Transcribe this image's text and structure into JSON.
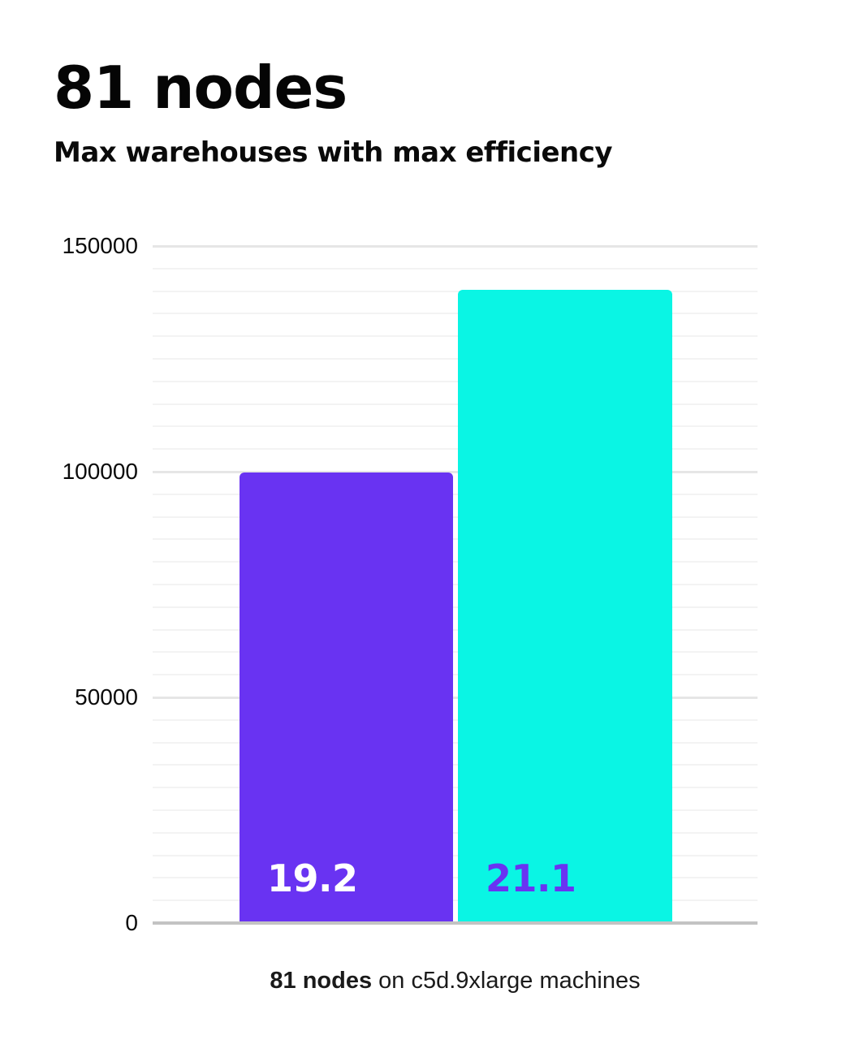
{
  "header": {
    "title": "81 nodes",
    "subtitle": "Max warehouses with max efficiency"
  },
  "chart_data": {
    "type": "bar",
    "title": "81 nodes",
    "subtitle": "Max warehouses with max efficiency",
    "categories": [
      "19.2",
      "21.1"
    ],
    "values": [
      99400,
      140000
    ],
    "bar_colors": [
      "#6933f2",
      "#0af5e4"
    ],
    "bar_label_colors": [
      "#ffffff",
      "#6933f2"
    ],
    "xlabel": "",
    "ylabel": "",
    "ylim": [
      0,
      150000
    ],
    "ytick_values": [
      0,
      50000,
      100000,
      150000
    ],
    "ytick_labels": [
      "0",
      "50000",
      "100000",
      "150000"
    ],
    "minor_grid_step": 5000,
    "major_grid_step": 50000,
    "grid": "horizontal",
    "legend": "none",
    "annotation": "81 nodes on c5d.9xlarge machines"
  },
  "caption": {
    "highlight": "81 nodes",
    "text": " on c5d.9xlarge machines"
  },
  "colors": {
    "bar_primary": "#6933f2",
    "bar_secondary": "#0af5e4",
    "grid_minor": "#f3f3f3",
    "grid_major": "#e6e6e6",
    "axis_baseline": "#c3c3c3",
    "text": "#050505",
    "background": "#ffffff"
  }
}
